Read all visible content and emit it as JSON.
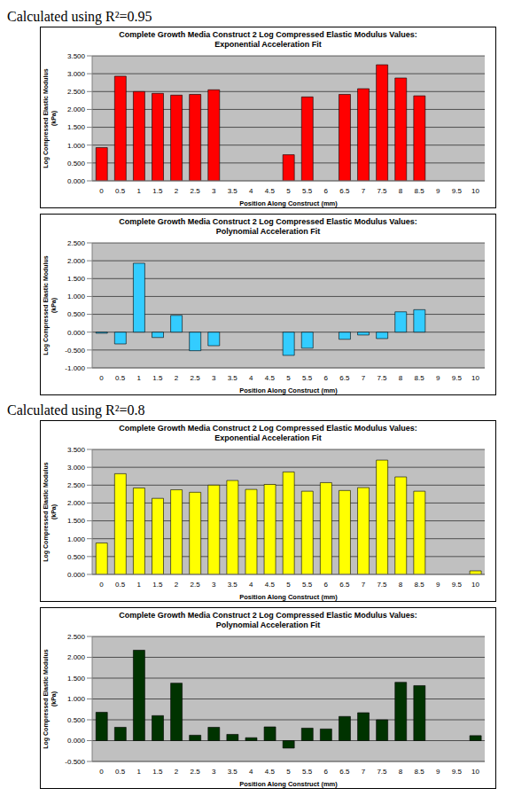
{
  "headings": [
    "Calculated using R²=0.95",
    "Calculated using R²=0.8"
  ],
  "chart_data": [
    {
      "type": "bar",
      "title": "Complete Growth Media Construct 2 Log Compressed Elastic Modulus Values: Exponential Acceleration Fit",
      "x_label": "Position Along Construct (mm)",
      "y_label": "Log Compressed Elastic Modulus (kPa)",
      "categories": [
        "0",
        "0.5",
        "1",
        "1.5",
        "2",
        "2.5",
        "3",
        "3.5",
        "4",
        "4.5",
        "5",
        "5.5",
        "6",
        "6.5",
        "7",
        "7.5",
        "8",
        "8.5",
        "9",
        "9.5",
        "10"
      ],
      "values": [
        0.93,
        2.93,
        2.5,
        2.45,
        2.4,
        2.42,
        2.55,
        null,
        null,
        null,
        0.73,
        2.35,
        null,
        2.42,
        2.58,
        3.25,
        2.88,
        2.38,
        null,
        null,
        null
      ],
      "color": "#ff0000",
      "ylim": [
        0,
        3.5
      ],
      "yticks": [
        {
          "value": 0,
          "label": "0.000"
        },
        {
          "value": 0.5,
          "label": "0.500"
        },
        {
          "value": 1,
          "label": "1.000"
        },
        {
          "value": 1.5,
          "label": "1.500"
        },
        {
          "value": 2,
          "label": "2.000"
        },
        {
          "value": 2.5,
          "label": "2.500"
        },
        {
          "value": 3,
          "label": "3.000"
        },
        {
          "value": 3.5,
          "label": "3.500"
        }
      ],
      "grid": true
    },
    {
      "type": "bar",
      "title": "Complete Growth Media Construct 2 Log Compressed Elastic Modulus Values: Polynomial Acceleration Fit",
      "x_label": "Position Along Construct (mm)",
      "y_label": "Log Compressed Elastic Modulus (kPa)",
      "categories": [
        "0",
        "0.5",
        "1",
        "1.5",
        "2",
        "2.5",
        "3",
        "3.5",
        "4",
        "4.5",
        "5",
        "5.5",
        "6",
        "6.5",
        "7",
        "7.5",
        "8",
        "8.5",
        "9",
        "9.5",
        "10"
      ],
      "values": [
        -0.03,
        -0.33,
        1.93,
        -0.15,
        0.47,
        -0.52,
        -0.38,
        null,
        null,
        null,
        -0.65,
        -0.45,
        null,
        -0.2,
        -0.08,
        -0.18,
        0.57,
        0.63,
        null,
        null,
        null
      ],
      "color": "#33ccff",
      "ylim": [
        -1,
        2.5
      ],
      "yticks": [
        {
          "value": -1,
          "label": "-1.000"
        },
        {
          "value": -0.5,
          "label": "-0.500"
        },
        {
          "value": 0,
          "label": "0.000"
        },
        {
          "value": 0.5,
          "label": "0.500"
        },
        {
          "value": 1,
          "label": "1.000"
        },
        {
          "value": 1.5,
          "label": "1.500"
        },
        {
          "value": 2,
          "label": "2.000"
        },
        {
          "value": 2.5,
          "label": "2.500"
        }
      ],
      "grid": true
    },
    {
      "type": "bar",
      "title": "Complete Growth Media Construct 2 Log Compressed Elastic Modulus Values: Exponential Acceleration Fit",
      "x_label": "Position Along Construct (mm)",
      "y_label": "Log Compressed Elastic Modulus (kPa)",
      "categories": [
        "0",
        "0.5",
        "1",
        "1.5",
        "2",
        "2.5",
        "3",
        "3.5",
        "4",
        "4.5",
        "5",
        "5.5",
        "6",
        "6.5",
        "7",
        "7.5",
        "8",
        "8.5",
        "9",
        "9.5",
        "10"
      ],
      "values": [
        0.88,
        2.82,
        2.42,
        2.13,
        2.37,
        2.3,
        2.5,
        2.63,
        2.38,
        2.52,
        2.87,
        2.33,
        2.57,
        2.35,
        2.43,
        3.2,
        2.73,
        2.33,
        null,
        null,
        0.1
      ],
      "color": "#ffff00",
      "ylim": [
        0,
        3.5
      ],
      "yticks": [
        {
          "value": 0,
          "label": "0.000"
        },
        {
          "value": 0.5,
          "label": "0.500"
        },
        {
          "value": 1,
          "label": "1.000"
        },
        {
          "value": 1.5,
          "label": "1.500"
        },
        {
          "value": 2,
          "label": "2.000"
        },
        {
          "value": 2.5,
          "label": "2.500"
        },
        {
          "value": 3,
          "label": "3.000"
        },
        {
          "value": 3.5,
          "label": "3.500"
        }
      ],
      "grid": true
    },
    {
      "type": "bar",
      "title": "Complete Growth Media Construct 2 Log Compressed Elastic Modulus Values: Polynomial Acceleration Fit",
      "x_label": "Position Along Construct (mm)",
      "y_label": "Log Compressed Elastic Modulus (kPa)",
      "categories": [
        "0",
        "0.5",
        "1",
        "1.5",
        "2",
        "2.5",
        "3",
        "3.5",
        "4",
        "4.5",
        "5",
        "5.5",
        "6",
        "6.5",
        "7",
        "7.5",
        "8",
        "8.5",
        "9",
        "9.5",
        "10"
      ],
      "values": [
        0.68,
        0.32,
        2.17,
        0.6,
        1.38,
        0.13,
        0.32,
        0.15,
        0.07,
        0.33,
        -0.18,
        0.3,
        0.28,
        0.58,
        0.67,
        0.5,
        1.4,
        1.32,
        null,
        null,
        0.12
      ],
      "color": "#003300",
      "ylim": [
        -0.5,
        2.5
      ],
      "yticks": [
        {
          "value": -0.5,
          "label": "-0.500"
        },
        {
          "value": 0,
          "label": "0.000"
        },
        {
          "value": 0.5,
          "label": "0.500"
        },
        {
          "value": 1,
          "label": "1.000"
        },
        {
          "value": 1.5,
          "label": "1.500"
        },
        {
          "value": 2,
          "label": "2.000"
        },
        {
          "value": 2.5,
          "label": "2.500"
        }
      ],
      "grid": true
    }
  ]
}
